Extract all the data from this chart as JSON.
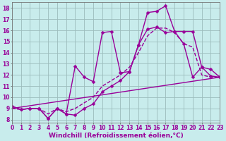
{
  "xlabel": "Windchill (Refroidissement éolien,°C)",
  "bg_color": "#c8ecec",
  "line_color": "#990099",
  "xlim": [
    0,
    23
  ],
  "ylim": [
    7.7,
    18.5
  ],
  "xticks": [
    0,
    1,
    2,
    3,
    4,
    5,
    6,
    7,
    8,
    9,
    10,
    11,
    12,
    13,
    14,
    15,
    16,
    17,
    18,
    19,
    20,
    21,
    22,
    23
  ],
  "yticks": [
    8,
    9,
    10,
    11,
    12,
    13,
    14,
    15,
    16,
    17,
    18
  ],
  "series": [
    {
      "x": [
        0,
        1,
        2,
        3,
        4,
        5,
        6,
        7,
        8,
        9,
        10,
        11,
        12,
        13,
        14,
        15,
        16,
        17,
        18,
        19,
        20,
        21,
        22,
        23
      ],
      "y": [
        9.2,
        8.9,
        9.0,
        9.0,
        8.1,
        9.0,
        8.5,
        8.4,
        9.0,
        9.4,
        10.5,
        11.0,
        11.5,
        12.3,
        14.7,
        16.1,
        16.3,
        15.8,
        15.9,
        14.8,
        11.8,
        12.7,
        11.9,
        11.8
      ],
      "style": "-",
      "marker": "D",
      "lw": 1.0,
      "ms": 2.5
    },
    {
      "x": [
        0,
        1,
        2,
        3,
        4,
        5,
        6,
        7,
        8,
        9,
        10,
        11,
        12,
        13,
        14,
        15,
        16,
        17,
        18,
        19,
        20,
        21,
        22,
        23
      ],
      "y": [
        9.2,
        8.9,
        9.0,
        9.0,
        8.1,
        9.0,
        8.5,
        12.8,
        11.8,
        11.4,
        15.8,
        15.9,
        12.2,
        12.3,
        14.7,
        17.6,
        17.7,
        18.2,
        15.9,
        15.9,
        15.9,
        12.7,
        12.5,
        11.8
      ],
      "style": "-",
      "marker": "D",
      "lw": 1.0,
      "ms": 2.5
    },
    {
      "x": [
        0,
        1,
        2,
        3,
        4,
        5,
        6,
        7,
        8,
        9,
        10,
        11,
        12,
        13,
        14,
        15,
        16,
        17,
        18,
        19,
        20,
        21,
        22,
        23
      ],
      "y": [
        9.0,
        8.9,
        9.0,
        9.0,
        8.5,
        9.0,
        8.7,
        9.0,
        9.5,
        10.0,
        11.0,
        11.5,
        12.0,
        12.7,
        14.0,
        15.5,
        16.2,
        16.2,
        15.8,
        14.8,
        14.5,
        12.0,
        11.8,
        11.8
      ],
      "style": "--",
      "marker": "None",
      "lw": 1.0,
      "ms": 0
    },
    {
      "x": [
        0,
        23
      ],
      "y": [
        9.0,
        11.8
      ],
      "style": "-",
      "marker": "None",
      "lw": 1.0,
      "ms": 0
    }
  ],
  "grid_color": "#9bbcbc",
  "tick_fontsize": 5.5,
  "xlabel_fontsize": 6.5
}
